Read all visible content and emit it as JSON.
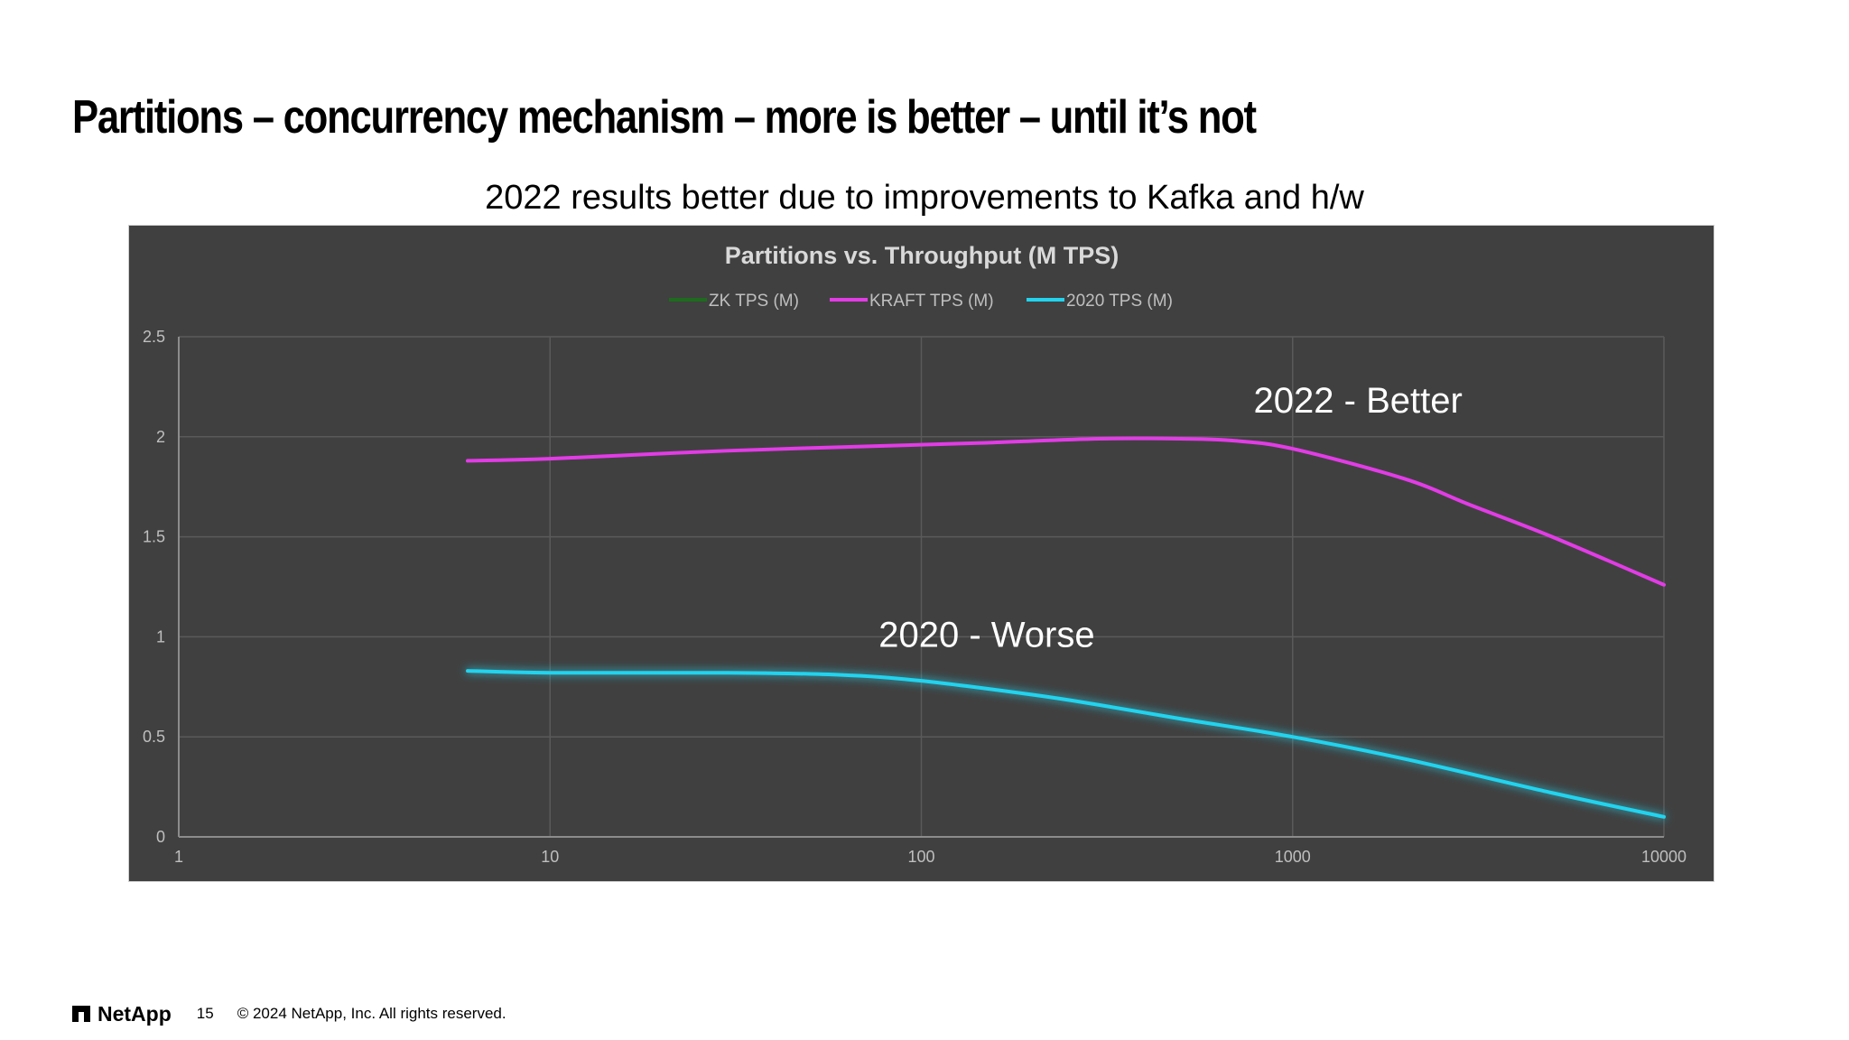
{
  "slide": {
    "title": "Partitions – concurrency mechanism – more is better – until it’s not",
    "subtitle": "2022 results better due to improvements to Kafka and h/w"
  },
  "footer": {
    "logo": "NetApp",
    "page_number": "15",
    "copyright": "© 2024 NetApp, Inc. All rights reserved."
  },
  "colors": {
    "panel_bg": "#404040",
    "zk": "#1e6b1e",
    "kraft": "#e23ce6",
    "y2020": "#22d3ee"
  },
  "chart_data": {
    "type": "line",
    "title": "Partitions vs. Throughput (M TPS)",
    "x_scale": "log",
    "xlim": [
      1,
      10000
    ],
    "ylim": [
      0,
      2.5
    ],
    "x_ticks": [
      "1",
      "10",
      "100",
      "1000",
      "10000"
    ],
    "y_ticks": [
      "0",
      "0.5",
      "1",
      "1.5",
      "2",
      "2.5"
    ],
    "legend_position": "top-center",
    "grid": true,
    "series": [
      {
        "name": "ZK TPS (M)",
        "color": "#1e6b1e",
        "x": [],
        "y": []
      },
      {
        "name": "KRAFT TPS (M)",
        "color": "#e23ce6",
        "x": [
          6,
          10,
          30,
          100,
          150,
          300,
          500,
          700,
          1000,
          2000,
          3000,
          5000,
          10000
        ],
        "y": [
          1.88,
          1.89,
          1.93,
          1.96,
          1.97,
          1.99,
          1.99,
          1.98,
          1.94,
          1.79,
          1.66,
          1.5,
          1.26
        ]
      },
      {
        "name": "2020 TPS (M)",
        "color": "#22d3ee",
        "x": [
          6,
          10,
          30,
          60,
          100,
          200,
          300,
          500,
          1000,
          2000,
          5000,
          10000
        ],
        "y": [
          0.83,
          0.82,
          0.82,
          0.81,
          0.78,
          0.71,
          0.66,
          0.59,
          0.5,
          0.39,
          0.22,
          0.1
        ]
      }
    ],
    "annotations": [
      {
        "text": "2022 - Better",
        "x": 1500,
        "y": 2.12
      },
      {
        "text": "2020 - Worse",
        "x": 150,
        "y": 0.95
      }
    ]
  }
}
